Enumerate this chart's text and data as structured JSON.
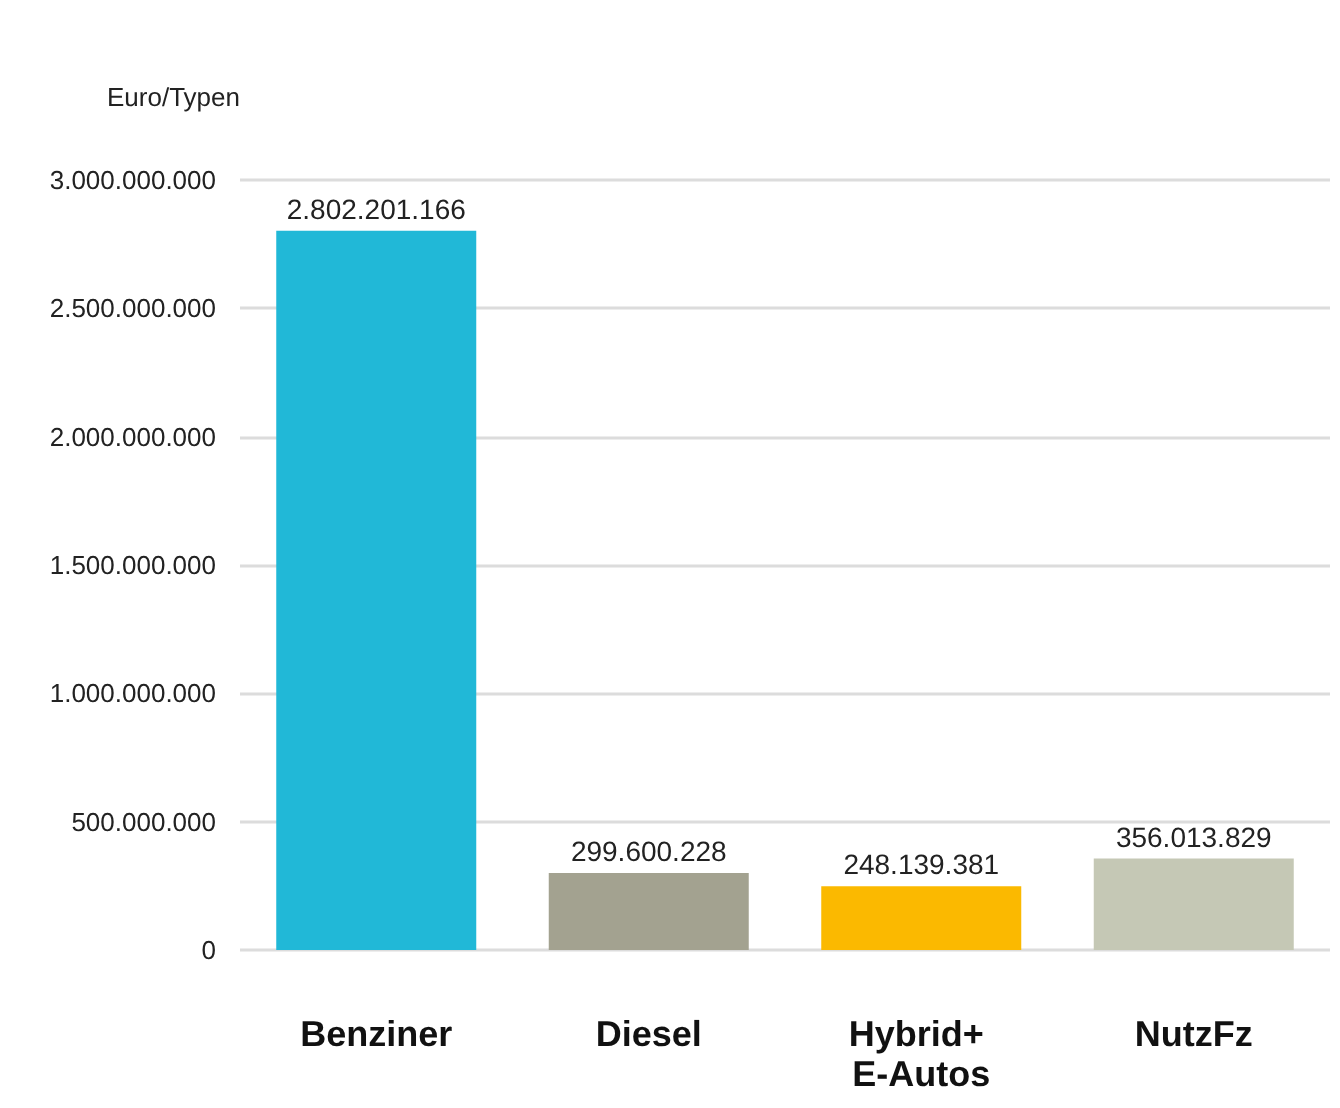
{
  "chart_data": {
    "type": "bar",
    "ylabel": "Euro/Typen",
    "categories": [
      "Benziner",
      "Diesel",
      "Hybrid+ E-Autos",
      "NutzFz"
    ],
    "values": [
      2802201166,
      299600228,
      248139381,
      356013829
    ],
    "colors": [
      "#21b8d7",
      "#a3a290",
      "#fbb900",
      "#c5c8b5"
    ],
    "value_labels": [
      "2.802.201.166",
      "299.600.228",
      "248.139.381",
      "356.013.829"
    ],
    "ylim": [
      0,
      3000000000
    ],
    "yticks": [
      {
        "value": 0,
        "label": "0"
      },
      {
        "value": 500000000,
        "label": "500.000.000"
      },
      {
        "value": 1000000000,
        "label": "1.000.000.000"
      },
      {
        "value": 1500000000,
        "label": "1.500.000.000"
      },
      {
        "value": 2000000000,
        "label": "2.000.000.000"
      },
      {
        "value": 2500000000,
        "label": "2.500.000.000"
      },
      {
        "value": 3000000000,
        "label": "3.000.000.000"
      }
    ],
    "grid": "y"
  }
}
